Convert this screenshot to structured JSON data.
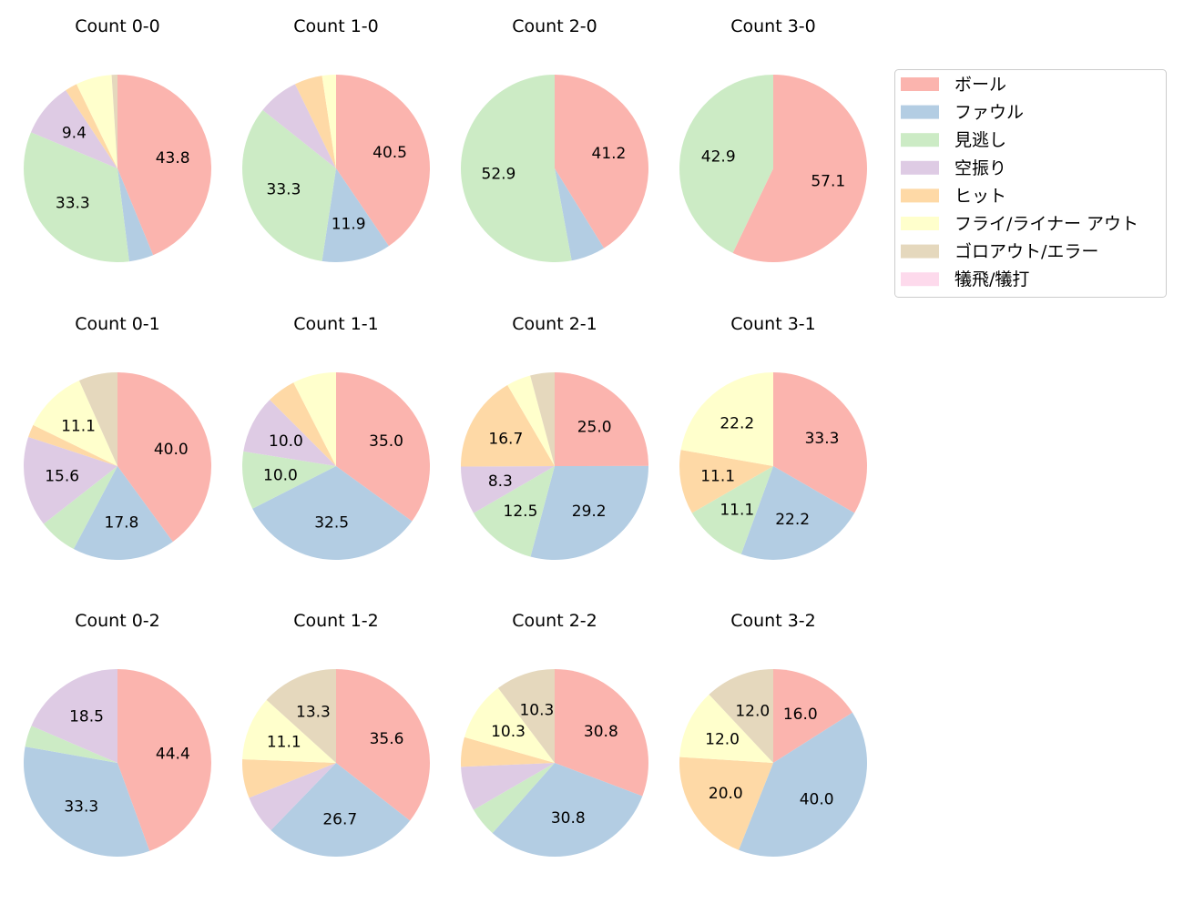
{
  "chart_data": {
    "type": "pie",
    "legend_position": "top-right",
    "start": "top, clockwise",
    "legend": [
      "ボール",
      "ファウル",
      "見逃し",
      "空振り",
      "ヒット",
      "フライ/ライナー アウト",
      "ゴロアウト/エラー",
      "犠飛/犠打"
    ],
    "colors": [
      "#fbb4ae",
      "#b3cde3",
      "#ccebc5",
      "#decbe4",
      "#fed9a6",
      "#ffffcc",
      "#e5d8bd",
      "#fddaec"
    ],
    "charts": [
      {
        "title": "Count 0-0",
        "values": [
          43.8,
          4.2,
          33.3,
          9.4,
          2.1,
          6.2,
          1.0,
          0
        ]
      },
      {
        "title": "Count 1-0",
        "values": [
          40.5,
          11.9,
          33.3,
          7.1,
          4.8,
          2.4,
          0,
          0
        ]
      },
      {
        "title": "Count 2-0",
        "values": [
          41.2,
          5.9,
          52.9,
          0,
          0,
          0,
          0,
          0
        ]
      },
      {
        "title": "Count 3-0",
        "values": [
          57.1,
          0,
          42.9,
          0,
          0,
          0,
          0,
          0
        ]
      },
      {
        "title": "Count 0-1",
        "values": [
          40.0,
          17.8,
          6.7,
          15.6,
          2.2,
          11.1,
          6.7,
          0
        ]
      },
      {
        "title": "Count 1-1",
        "values": [
          35.0,
          32.5,
          10.0,
          10.0,
          5.0,
          7.5,
          0,
          0
        ]
      },
      {
        "title": "Count 2-1",
        "values": [
          25.0,
          29.2,
          12.5,
          8.3,
          16.7,
          4.2,
          4.2,
          0
        ]
      },
      {
        "title": "Count 3-1",
        "values": [
          33.3,
          22.2,
          11.1,
          0,
          11.1,
          22.2,
          0,
          0
        ]
      },
      {
        "title": "Count 0-2",
        "values": [
          44.4,
          33.3,
          3.7,
          18.5,
          0,
          0,
          0,
          0
        ]
      },
      {
        "title": "Count 1-2",
        "values": [
          35.6,
          26.7,
          0,
          6.7,
          6.7,
          11.1,
          13.3,
          0
        ]
      },
      {
        "title": "Count 2-2",
        "values": [
          30.8,
          30.8,
          5.1,
          7.7,
          5.1,
          10.3,
          10.3,
          0
        ]
      },
      {
        "title": "Count 3-2",
        "values": [
          16.0,
          40.0,
          0,
          0,
          20.0,
          12.0,
          12.0,
          0
        ]
      }
    ]
  }
}
